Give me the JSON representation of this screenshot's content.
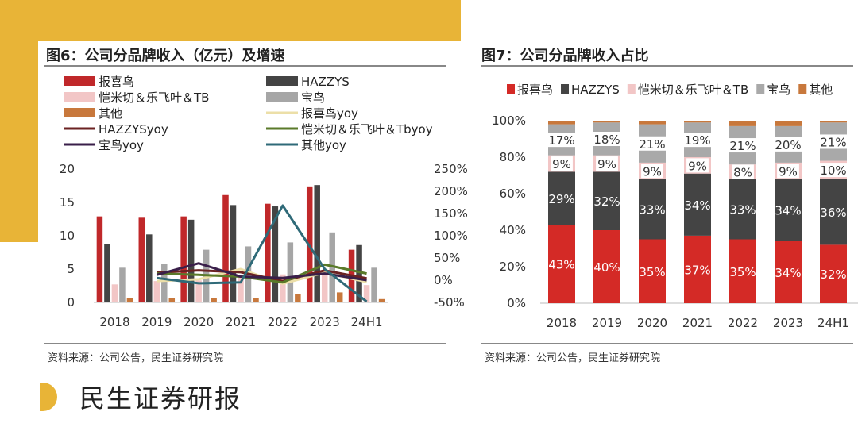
{
  "footer": {
    "brand": "民生证券研报"
  },
  "charts": [
    {
      "title": "图6：公司分品牌收入（亿元）及增速",
      "source": "资料来源：公司公告，民生证券研究院"
    },
    {
      "title": "图7：公司分品牌收入占比",
      "source": "资料来源：公司公告，民生证券研究院"
    }
  ],
  "chart_data": [
    {
      "type": "bar",
      "title": "图6：公司分品牌收入（亿元）及增速",
      "categories": [
        "2018",
        "2019",
        "2020",
        "2021",
        "2022",
        "2023",
        "24H1"
      ],
      "ylim": [
        0,
        20
      ],
      "y_ticks": [
        "20",
        "15",
        "10",
        "5",
        "0"
      ],
      "y2lim": [
        -50,
        250
      ],
      "y2_ticks": [
        "250%",
        "200%",
        "150%",
        "100%",
        "50%",
        "0%",
        "-50%"
      ],
      "legend": "top, two columns",
      "series": [
        {
          "name": "报喜鸟",
          "kind": "bar",
          "color": "#c0282a",
          "values": [
            12.9,
            12.7,
            12.9,
            16.1,
            14.8,
            17.4,
            7.9
          ]
        },
        {
          "name": "HAZZYS",
          "kind": "bar",
          "color": "#444444",
          "values": [
            8.7,
            10.2,
            12.4,
            14.6,
            14.4,
            17.6,
            8.6
          ]
        },
        {
          "name": "恺米切＆乐飞叶＆TB",
          "kind": "bar",
          "color": "#f2c6c6",
          "values": [
            2.7,
            3.2,
            3.3,
            4.1,
            4.2,
            4.5,
            2.6
          ]
        },
        {
          "name": "宝鸟",
          "kind": "bar",
          "color": "#a6a6a6",
          "values": [
            5.2,
            5.8,
            7.9,
            8.4,
            9.0,
            10.5,
            5.2
          ]
        },
        {
          "name": "其他",
          "kind": "bar",
          "color": "#c8783c",
          "values": [
            0.6,
            0.7,
            0.6,
            0.6,
            1.2,
            1.5,
            0.5
          ]
        },
        {
          "name": "报喜鸟yoy",
          "kind": "line",
          "color": "#ecdfa8",
          "values": [
            null,
            -2,
            2,
            25,
            -8,
            17,
            -4
          ]
        },
        {
          "name": "HAZZYSyoy",
          "kind": "line",
          "color": "#6b2222",
          "values": [
            null,
            17,
            22,
            18,
            -2,
            22,
            4
          ]
        },
        {
          "name": "恺米切＆乐飞叶＆Tbyoy",
          "kind": "line",
          "color": "#5a7a2a",
          "values": [
            null,
            15,
            12,
            8,
            -5,
            35,
            15
          ]
        },
        {
          "name": "宝鸟yoy",
          "kind": "line",
          "color": "#3a1f4a",
          "values": [
            null,
            12,
            38,
            8,
            5,
            15,
            0
          ]
        },
        {
          "name": "其他yoy",
          "kind": "line",
          "color": "#2f6a78",
          "values": [
            null,
            5,
            -7,
            -5,
            168,
            25,
            -48
          ]
        }
      ]
    },
    {
      "type": "bar",
      "stacked": true,
      "title": "图7：公司分品牌收入占比",
      "categories": [
        "2018",
        "2019",
        "2020",
        "2021",
        "2022",
        "2023",
        "24H1"
      ],
      "ylim": [
        0,
        100
      ],
      "y_ticks": [
        "100%",
        "80%",
        "60%",
        "40%",
        "20%",
        "0%"
      ],
      "legend": "top, single row",
      "series": [
        {
          "name": "报喜鸟",
          "color": "#d42a26",
          "values": [
            43,
            40,
            35,
            37,
            35,
            34,
            32
          ],
          "labels": [
            "43%",
            "40%",
            "35%",
            "37%",
            "35%",
            "34%",
            "32%"
          ]
        },
        {
          "name": "HAZZYS",
          "color": "#444444",
          "values": [
            29,
            32,
            33,
            34,
            33,
            34,
            36
          ],
          "labels": [
            "29%",
            "32%",
            "33%",
            "34%",
            "33%",
            "34%",
            "36%"
          ]
        },
        {
          "name": "恺米切＆乐飞叶＆TB",
          "color": "#f2c6c6",
          "values": [
            9,
            9,
            9,
            9,
            8,
            9,
            10
          ],
          "labels": [
            "9%",
            "9%",
            "9%",
            "9%",
            "8%",
            "9%",
            "10%"
          ]
        },
        {
          "name": "宝鸟",
          "color": "#a9a9a9",
          "values": [
            17,
            18,
            21,
            19,
            21,
            20,
            21
          ],
          "labels": [
            "17%",
            "18%",
            "21%",
            "19%",
            "21%",
            "20%",
            "21%"
          ]
        },
        {
          "name": "其他",
          "color": "#c8783c",
          "values": [
            2,
            1,
            2,
            1,
            3,
            3,
            1
          ]
        }
      ]
    }
  ]
}
